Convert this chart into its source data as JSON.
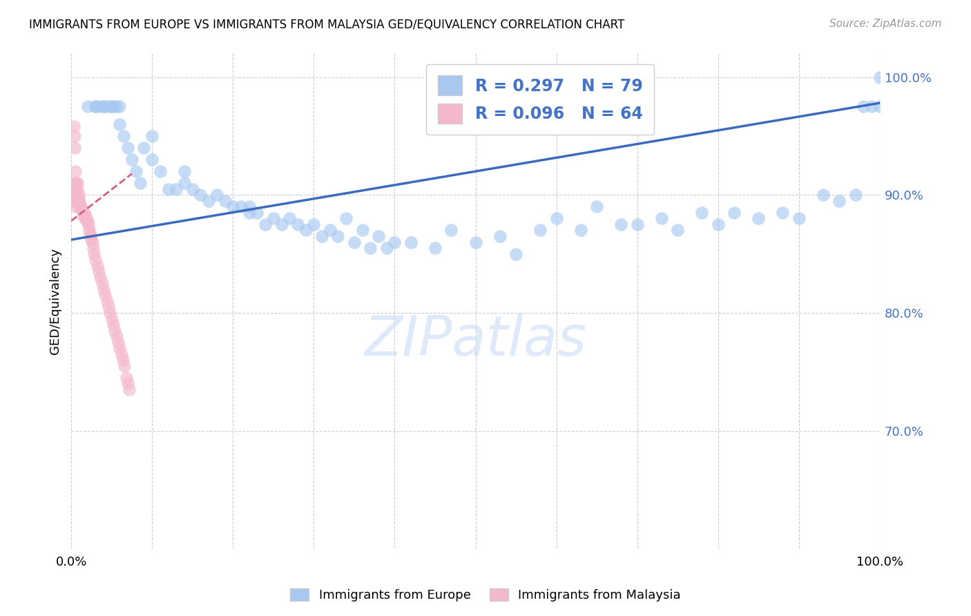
{
  "title": "IMMIGRANTS FROM EUROPE VS IMMIGRANTS FROM MALAYSIA GED/EQUIVALENCY CORRELATION CHART",
  "source": "Source: ZipAtlas.com",
  "ylabel": "GED/Equivalency",
  "europe_color": "#a8c8f0",
  "europe_edge_color": "#7aadd8",
  "malaysia_color": "#f4b8cc",
  "malaysia_edge_color": "#e890aa",
  "europe_line_color": "#3a6bbf",
  "malaysia_line_color": "#d06080",
  "europe_R": 0.297,
  "europe_N": 79,
  "malaysia_R": 0.096,
  "malaysia_N": 64,
  "xlim": [
    0.0,
    1.0
  ],
  "ylim": [
    0.6,
    1.02
  ],
  "y_ticks": [
    0.7,
    0.8,
    0.9,
    1.0
  ],
  "y_tick_labels": [
    "70.0%",
    "80.0%",
    "90.0%",
    "100.0%"
  ],
  "x_ticks": [
    0.0,
    0.1,
    0.2,
    0.3,
    0.4,
    0.5,
    0.6,
    0.7,
    0.8,
    0.9,
    1.0
  ],
  "europe_line_x": [
    0.0,
    1.0
  ],
  "europe_line_y": [
    0.862,
    0.978
  ],
  "malaysia_line_x": [
    0.0,
    0.075
  ],
  "malaysia_line_y": [
    0.878,
    0.918
  ],
  "europe_x": [
    0.02,
    0.03,
    0.03,
    0.035,
    0.04,
    0.04,
    0.045,
    0.05,
    0.05,
    0.055,
    0.06,
    0.06,
    0.065,
    0.07,
    0.075,
    0.08,
    0.085,
    0.09,
    0.1,
    0.1,
    0.11,
    0.12,
    0.13,
    0.14,
    0.14,
    0.15,
    0.16,
    0.17,
    0.18,
    0.19,
    0.2,
    0.21,
    0.22,
    0.22,
    0.23,
    0.24,
    0.25,
    0.26,
    0.27,
    0.28,
    0.29,
    0.3,
    0.31,
    0.32,
    0.33,
    0.34,
    0.35,
    0.36,
    0.37,
    0.38,
    0.39,
    0.4,
    0.42,
    0.45,
    0.47,
    0.5,
    0.53,
    0.55,
    0.58,
    0.6,
    0.63,
    0.65,
    0.68,
    0.7,
    0.73,
    0.75,
    0.78,
    0.8,
    0.82,
    0.85,
    0.88,
    0.9,
    0.93,
    0.95,
    0.97,
    0.98,
    0.99,
    1.0,
    1.0
  ],
  "europe_y": [
    0.975,
    0.975,
    0.975,
    0.975,
    0.975,
    0.975,
    0.975,
    0.975,
    0.975,
    0.975,
    0.975,
    0.96,
    0.95,
    0.94,
    0.93,
    0.92,
    0.91,
    0.94,
    0.93,
    0.95,
    0.92,
    0.905,
    0.905,
    0.92,
    0.91,
    0.905,
    0.9,
    0.895,
    0.9,
    0.895,
    0.89,
    0.89,
    0.885,
    0.89,
    0.885,
    0.875,
    0.88,
    0.875,
    0.88,
    0.875,
    0.87,
    0.875,
    0.865,
    0.87,
    0.865,
    0.88,
    0.86,
    0.87,
    0.855,
    0.865,
    0.855,
    0.86,
    0.86,
    0.855,
    0.87,
    0.86,
    0.865,
    0.85,
    0.87,
    0.88,
    0.87,
    0.89,
    0.875,
    0.875,
    0.88,
    0.87,
    0.885,
    0.875,
    0.885,
    0.88,
    0.885,
    0.88,
    0.9,
    0.895,
    0.9,
    0.975,
    0.975,
    0.975,
    1.0
  ],
  "malaysia_x": [
    0.003,
    0.004,
    0.004,
    0.005,
    0.005,
    0.005,
    0.005,
    0.005,
    0.005,
    0.006,
    0.006,
    0.006,
    0.006,
    0.007,
    0.007,
    0.007,
    0.008,
    0.008,
    0.008,
    0.008,
    0.009,
    0.009,
    0.01,
    0.01,
    0.011,
    0.012,
    0.013,
    0.014,
    0.015,
    0.016,
    0.017,
    0.018,
    0.019,
    0.02,
    0.021,
    0.022,
    0.023,
    0.024,
    0.025,
    0.026,
    0.027,
    0.028,
    0.03,
    0.032,
    0.034,
    0.036,
    0.038,
    0.04,
    0.042,
    0.044,
    0.046,
    0.048,
    0.05,
    0.052,
    0.054,
    0.056,
    0.058,
    0.06,
    0.062,
    0.064,
    0.066,
    0.068,
    0.07,
    0.072
  ],
  "malaysia_y": [
    0.958,
    0.95,
    0.94,
    0.92,
    0.91,
    0.905,
    0.9,
    0.895,
    0.89,
    0.91,
    0.905,
    0.9,
    0.895,
    0.91,
    0.9,
    0.895,
    0.91,
    0.905,
    0.9,
    0.895,
    0.9,
    0.895,
    0.895,
    0.89,
    0.892,
    0.89,
    0.888,
    0.885,
    0.882,
    0.885,
    0.88,
    0.882,
    0.878,
    0.878,
    0.875,
    0.87,
    0.868,
    0.865,
    0.862,
    0.86,
    0.855,
    0.85,
    0.845,
    0.84,
    0.835,
    0.83,
    0.825,
    0.82,
    0.815,
    0.81,
    0.805,
    0.8,
    0.795,
    0.79,
    0.785,
    0.78,
    0.775,
    0.77,
    0.765,
    0.76,
    0.755,
    0.745,
    0.74,
    0.735
  ],
  "watermark_text": "ZIPatlas",
  "watermark_color": "#c8ddf5",
  "bottom_legend_labels": [
    "Immigrants from Europe",
    "Immigrants from Malaysia"
  ]
}
